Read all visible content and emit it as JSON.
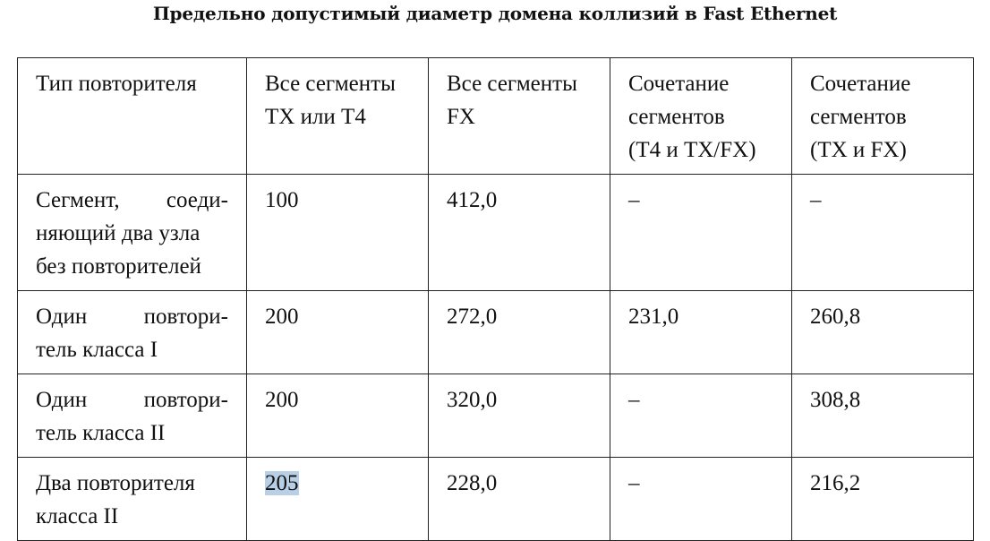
{
  "caption": "Предельно допустимый диаметр домена коллизий в Fast Ethernet",
  "table": {
    "headers": [
      [
        "Тип повторителя"
      ],
      [
        "Все сегменты",
        "TX или T4"
      ],
      [
        "Все сегменты",
        "FX"
      ],
      [
        "Сочетание",
        "сегментов",
        "(T4 и TX/FX)"
      ],
      [
        "Сочетание",
        "сегментов",
        "(TX и FX)"
      ]
    ],
    "rows": [
      {
        "label": [
          "Сегмент, соеди-",
          "няющий два узла",
          "без повторителей"
        ],
        "tx_t4": "100",
        "fx": "412,0",
        "t4_txfx": "–",
        "tx_fx": "–"
      },
      {
        "label": [
          "Один повтори-",
          "тель класса I"
        ],
        "tx_t4": "200",
        "fx": "272,0",
        "t4_txfx": "231,0",
        "tx_fx": "260,8"
      },
      {
        "label": [
          "Один повтори-",
          "тель класса II"
        ],
        "tx_t4": "200",
        "fx": "320,0",
        "t4_txfx": "–",
        "tx_fx": "308,8"
      },
      {
        "label": [
          "Два повторителя",
          "класса II"
        ],
        "tx_t4": "205",
        "fx": "228,0",
        "t4_txfx": "–",
        "tx_fx": "216,2"
      }
    ]
  }
}
